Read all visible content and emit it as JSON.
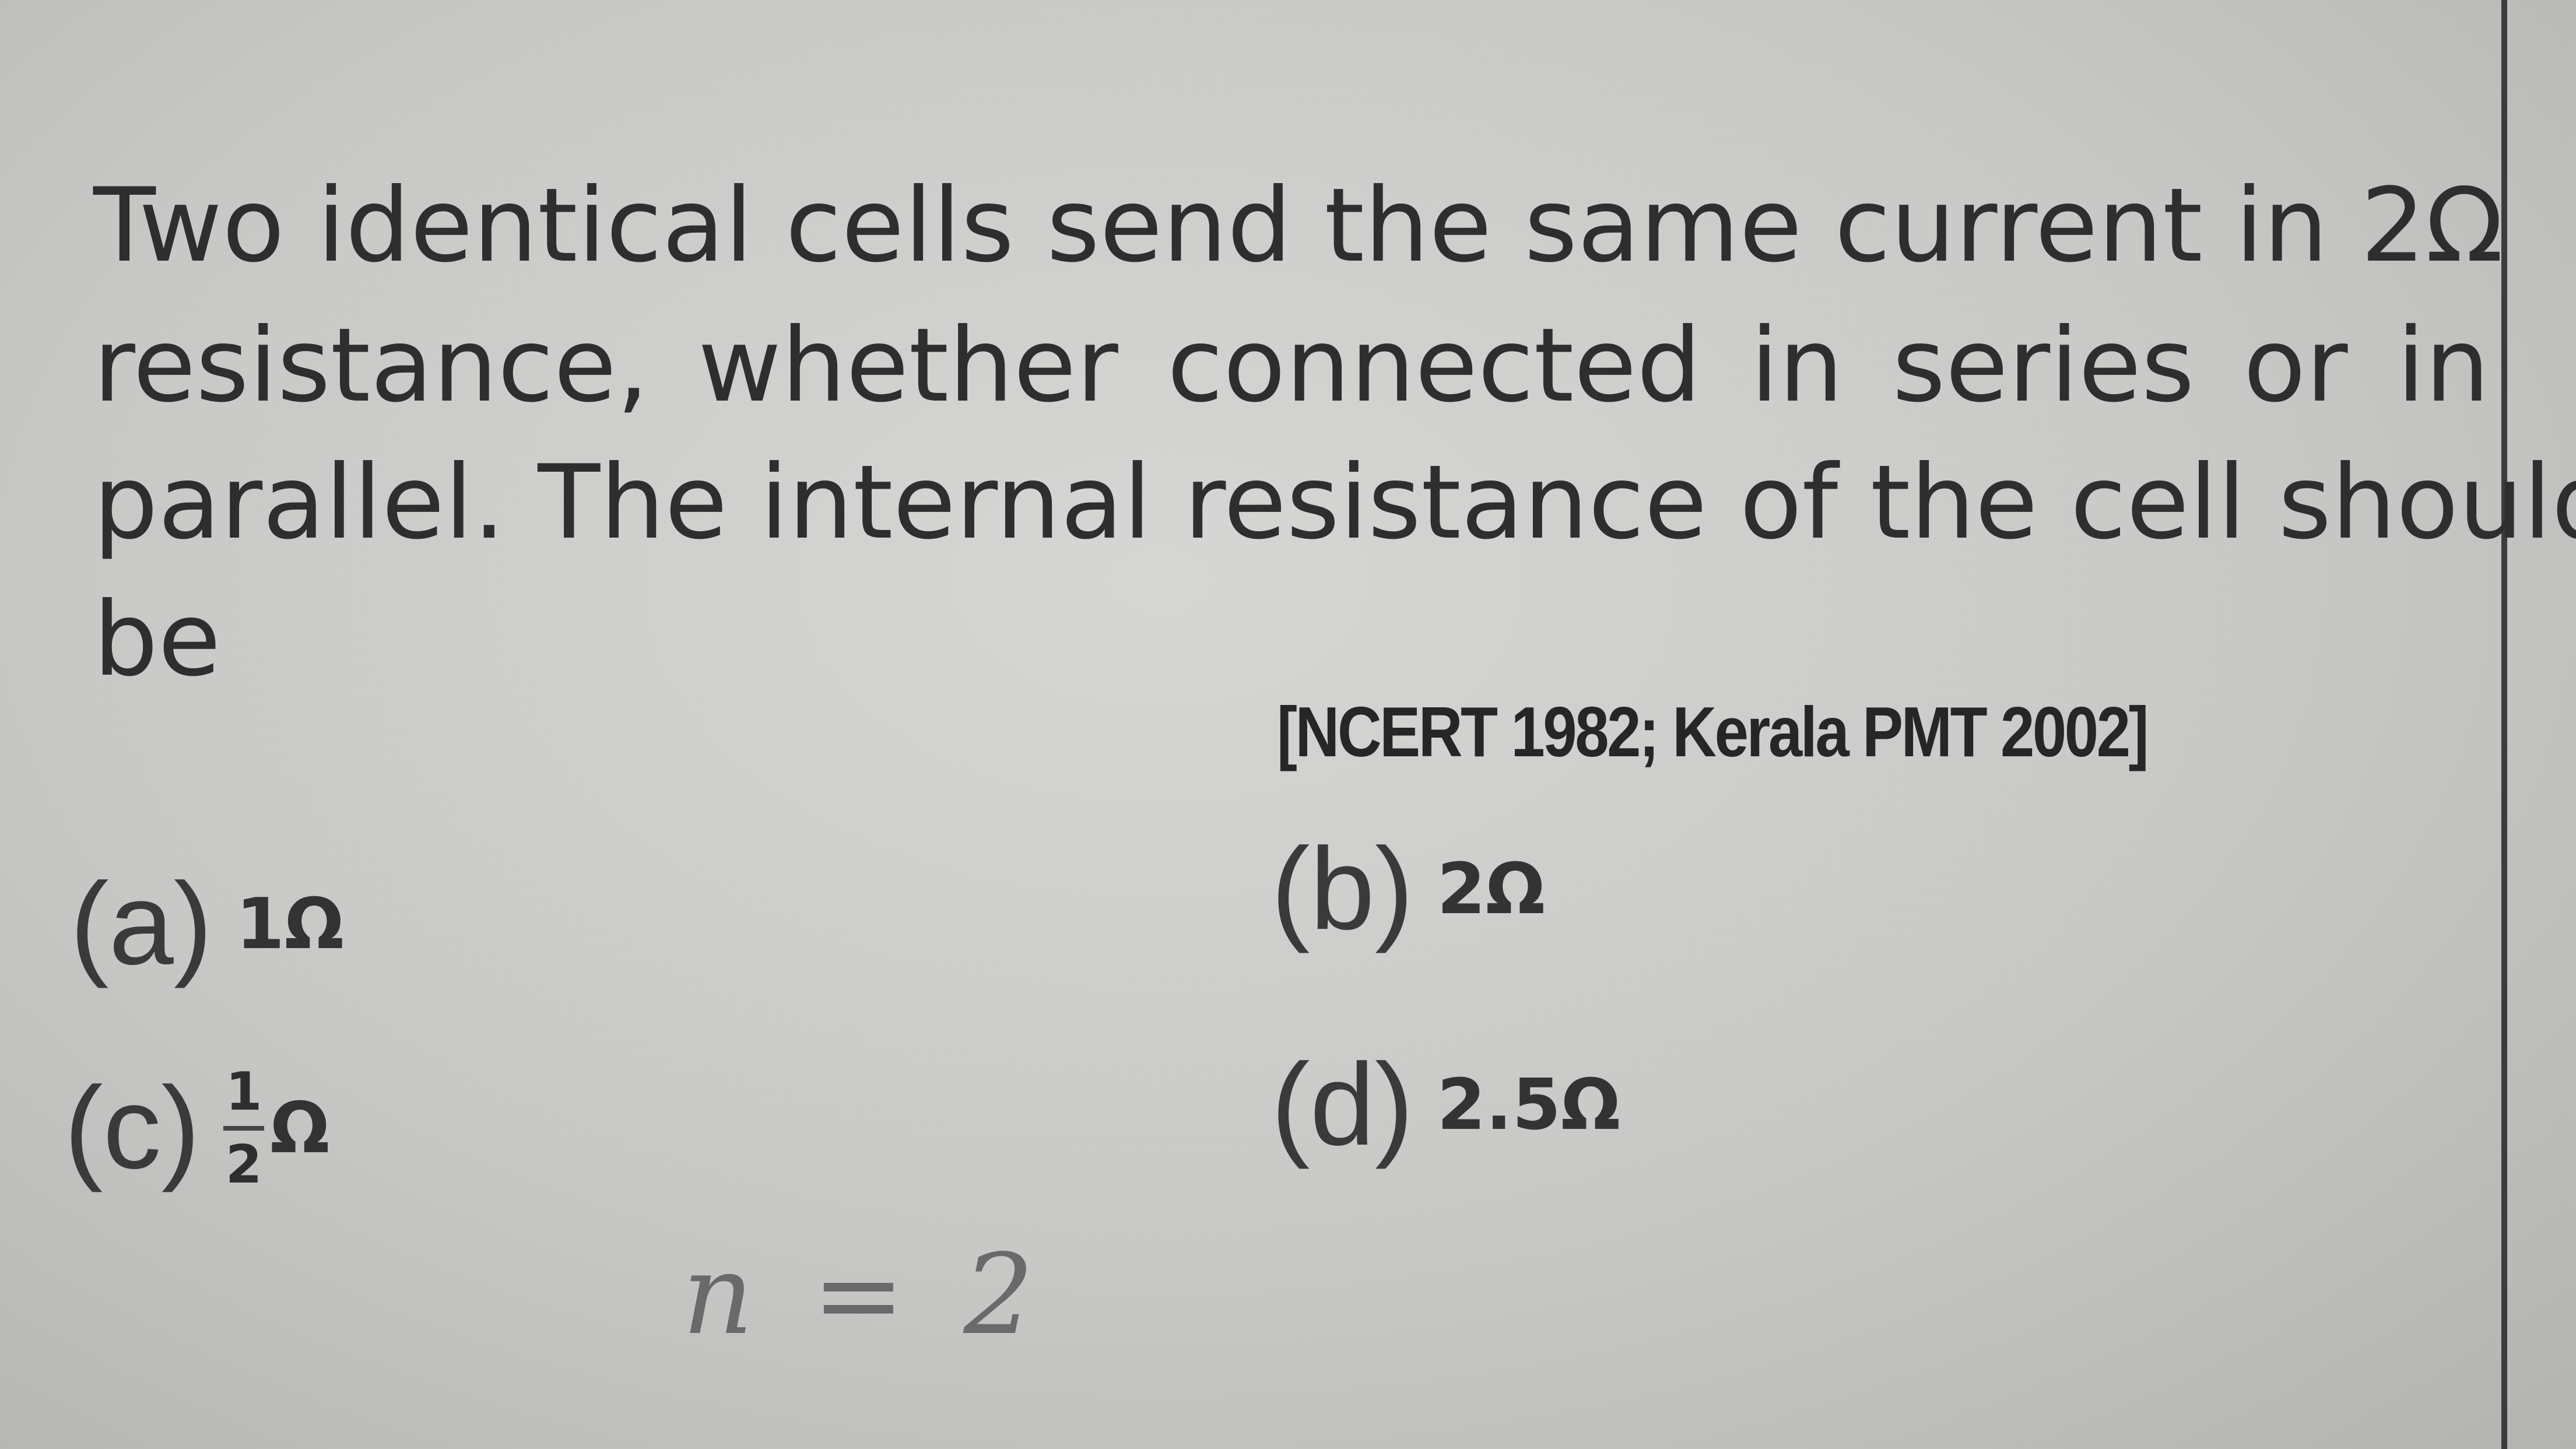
{
  "question": {
    "lines": [
      "Two identical cells send the same current in 2Ω",
      "resistance, whether connected in series or in",
      "parallel. The internal resistance of the cell should",
      "be"
    ],
    "source": "[NCERT 1982; Kerala PMT 2002]"
  },
  "options": [
    {
      "label": "(a)",
      "text": "1Ω"
    },
    {
      "label": "(b)",
      "text": "2Ω"
    },
    {
      "label": "(c)",
      "numerator": "1",
      "denominator": "2",
      "unit": "Ω"
    },
    {
      "label": "(d)",
      "text": "2.5Ω"
    }
  ],
  "handwriting": "n = 2"
}
